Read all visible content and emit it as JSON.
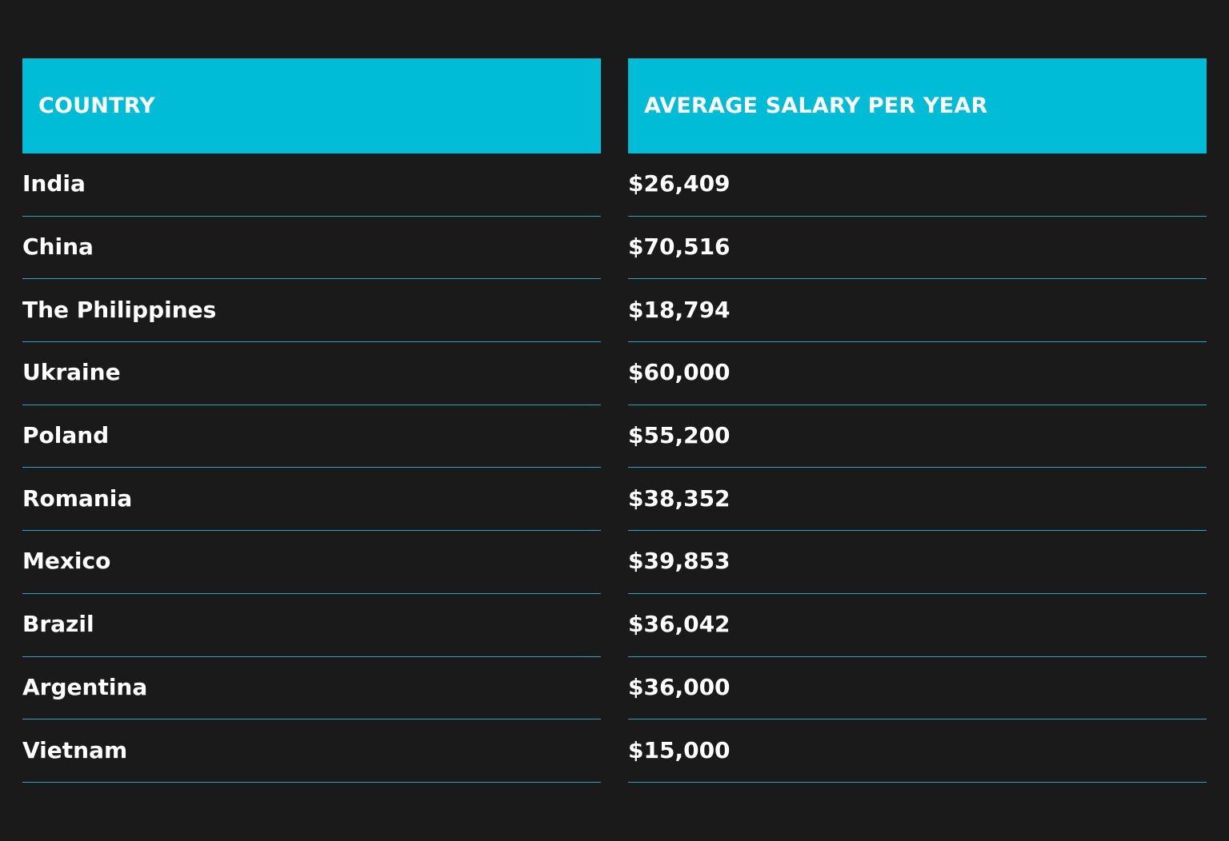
{
  "chart_data": {
    "type": "table",
    "columns": [
      "COUNTRY",
      "AVERAGE SALARY PER YEAR"
    ],
    "rows": [
      {
        "country": "India",
        "salary": "$26,409",
        "value": 26409
      },
      {
        "country": "China",
        "salary": "$70,516",
        "value": 70516
      },
      {
        "country": "The Philippines",
        "salary": "$18,794",
        "value": 18794
      },
      {
        "country": "Ukraine",
        "salary": "$60,000",
        "value": 60000
      },
      {
        "country": "Poland",
        "salary": "$55,200",
        "value": 55200
      },
      {
        "country": "Romania",
        "salary": "$38,352",
        "value": 38352
      },
      {
        "country": "Mexico",
        "salary": "$39,853",
        "value": 39853
      },
      {
        "country": "Brazil",
        "salary": "$36,042",
        "value": 36042
      },
      {
        "country": "Argentina",
        "salary": "$36,000",
        "value": 36000
      },
      {
        "country": "Vietnam",
        "salary": "$15,000",
        "value": 15000
      }
    ]
  },
  "colors": {
    "background": "#1a1a1b",
    "header": "#00bcd6",
    "divider": "#2aa7bd",
    "text": "#ffffff"
  }
}
